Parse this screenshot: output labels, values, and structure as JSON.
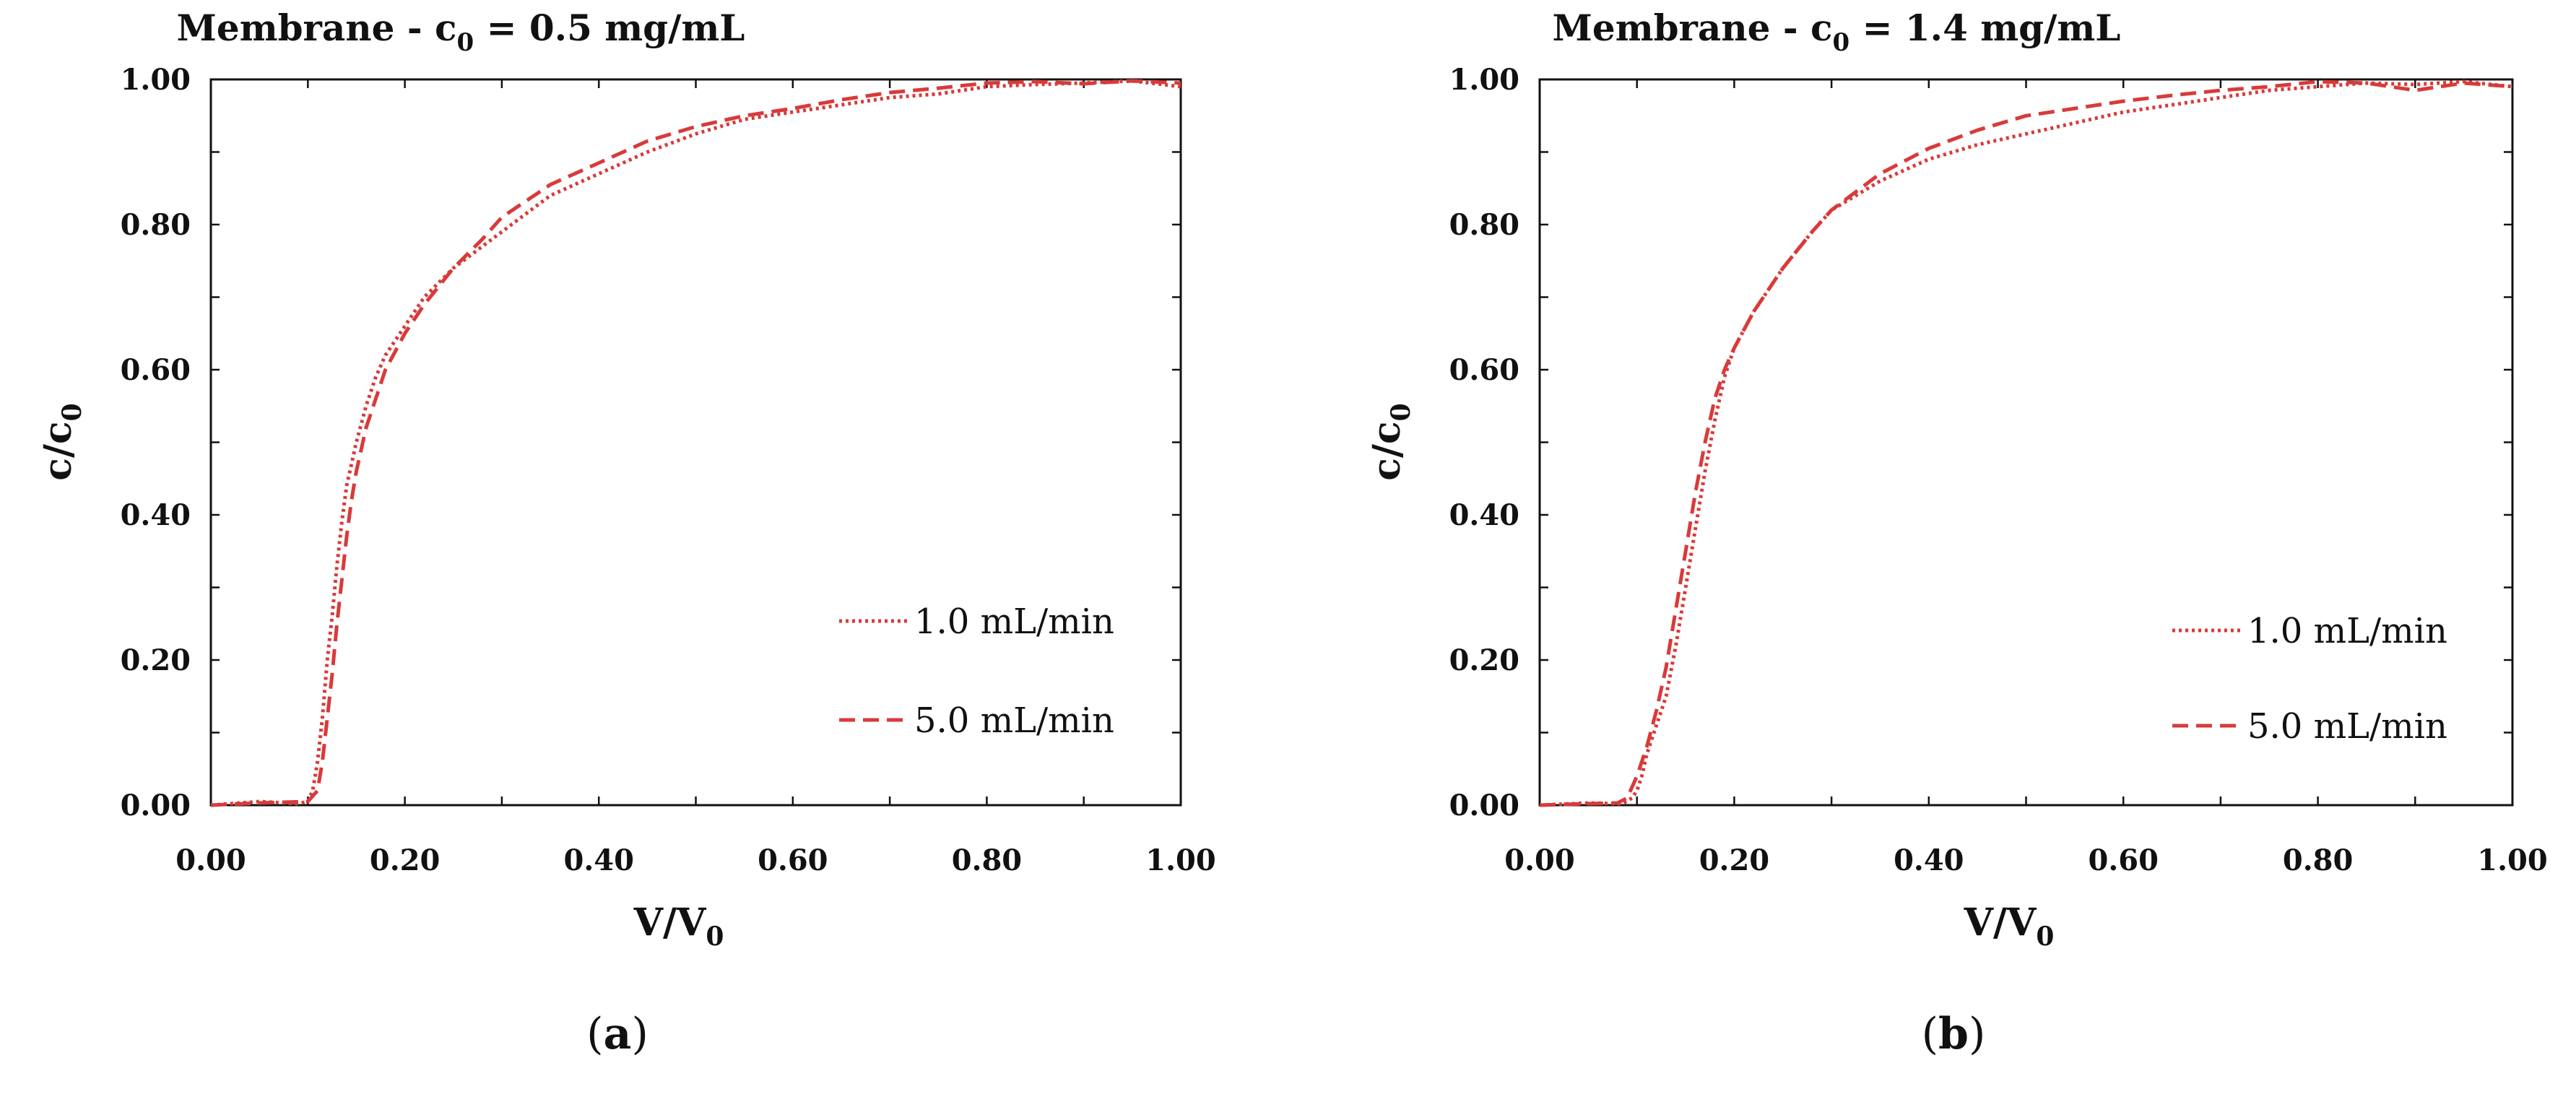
{
  "chart_data": [
    {
      "type": "line",
      "title": "Membrane - c",
      "title_sub": "0",
      "title_suffix": " = 0.5 mg/mL",
      "xlabel": "V/V",
      "xlabel_sub": "0",
      "ylabel": "c/c",
      "ylabel_sub": "0",
      "xlim": [
        0,
        1
      ],
      "ylim": [
        0,
        1
      ],
      "xticks": [
        "0.00",
        "0.20",
        "0.40",
        "0.60",
        "0.80",
        "1.00"
      ],
      "yticks": [
        "0.00",
        "0.20",
        "0.40",
        "0.60",
        "0.80",
        "1.00"
      ],
      "panel_label_open": "(",
      "panel_label": "a",
      "panel_label_close": ")",
      "series": [
        {
          "name": "1.0 mL/min",
          "style": "dotted",
          "color": "#d93a3a",
          "x": [
            0,
            0.05,
            0.09,
            0.1,
            0.105,
            0.11,
            0.115,
            0.12,
            0.125,
            0.13,
            0.135,
            0.14,
            0.15,
            0.16,
            0.17,
            0.18,
            0.2,
            0.22,
            0.25,
            0.28,
            0.3,
            0.35,
            0.4,
            0.45,
            0.5,
            0.55,
            0.6,
            0.65,
            0.7,
            0.75,
            0.8,
            0.85,
            0.9,
            0.95,
            1.0
          ],
          "y": [
            0,
            0.005,
            0.002,
            0.005,
            0.02,
            0.06,
            0.12,
            0.2,
            0.26,
            0.33,
            0.39,
            0.44,
            0.5,
            0.55,
            0.59,
            0.62,
            0.66,
            0.7,
            0.74,
            0.77,
            0.79,
            0.84,
            0.87,
            0.9,
            0.925,
            0.945,
            0.955,
            0.965,
            0.975,
            0.98,
            0.99,
            0.993,
            0.995,
            0.998,
            0.99
          ]
        },
        {
          "name": "5.0 mL/min",
          "style": "dashed",
          "color": "#d93a3a",
          "x": [
            0,
            0.05,
            0.1,
            0.11,
            0.115,
            0.12,
            0.125,
            0.13,
            0.135,
            0.14,
            0.145,
            0.15,
            0.16,
            0.17,
            0.18,
            0.2,
            0.22,
            0.25,
            0.28,
            0.3,
            0.35,
            0.4,
            0.45,
            0.5,
            0.55,
            0.6,
            0.65,
            0.7,
            0.75,
            0.8,
            0.85,
            0.9,
            0.95,
            1.0
          ],
          "y": [
            0,
            0.003,
            0.005,
            0.02,
            0.06,
            0.12,
            0.18,
            0.25,
            0.31,
            0.37,
            0.42,
            0.46,
            0.52,
            0.56,
            0.6,
            0.65,
            0.69,
            0.74,
            0.78,
            0.81,
            0.855,
            0.885,
            0.915,
            0.935,
            0.95,
            0.96,
            0.972,
            0.982,
            0.988,
            0.995,
            0.997,
            0.994,
            0.998,
            0.995
          ]
        }
      ]
    },
    {
      "type": "line",
      "title": "Membrane - c",
      "title_sub": "0",
      "title_suffix": " = 1.4 mg/mL",
      "xlabel": "V/V",
      "xlabel_sub": "0",
      "ylabel": "c/c",
      "ylabel_sub": "0",
      "xlim": [
        0,
        1
      ],
      "ylim": [
        0,
        1
      ],
      "xticks": [
        "0.00",
        "0.20",
        "0.40",
        "0.60",
        "0.80",
        "1.00"
      ],
      "yticks": [
        "0.00",
        "0.20",
        "0.40",
        "0.60",
        "0.80",
        "1.00"
      ],
      "panel_label_open": "(",
      "panel_label": "b",
      "panel_label_close": ")",
      "series": [
        {
          "name": "1.0 mL/min",
          "style": "dotted",
          "color": "#d93a3a",
          "x": [
            0,
            0.05,
            0.085,
            0.095,
            0.1,
            0.105,
            0.11,
            0.12,
            0.13,
            0.14,
            0.15,
            0.16,
            0.17,
            0.18,
            0.19,
            0.2,
            0.22,
            0.25,
            0.28,
            0.3,
            0.35,
            0.4,
            0.45,
            0.5,
            0.55,
            0.6,
            0.65,
            0.7,
            0.75,
            0.8,
            0.85,
            0.9,
            0.95,
            1.0
          ],
          "y": [
            0,
            0.003,
            0.002,
            0.01,
            0.02,
            0.04,
            0.07,
            0.11,
            0.15,
            0.22,
            0.3,
            0.38,
            0.46,
            0.53,
            0.59,
            0.63,
            0.68,
            0.74,
            0.79,
            0.82,
            0.86,
            0.89,
            0.91,
            0.925,
            0.94,
            0.955,
            0.965,
            0.975,
            0.985,
            0.99,
            0.995,
            0.993,
            0.997,
            0.99
          ]
        },
        {
          "name": "5.0 mL/min",
          "style": "dashed",
          "color": "#d93a3a",
          "x": [
            0,
            0.05,
            0.08,
            0.09,
            0.1,
            0.11,
            0.12,
            0.13,
            0.14,
            0.15,
            0.16,
            0.17,
            0.18,
            0.19,
            0.2,
            0.22,
            0.25,
            0.28,
            0.3,
            0.35,
            0.4,
            0.45,
            0.5,
            0.55,
            0.6,
            0.65,
            0.7,
            0.75,
            0.8,
            0.85,
            0.9,
            0.95,
            1.0
          ],
          "y": [
            0,
            0.002,
            0.003,
            0.01,
            0.04,
            0.08,
            0.13,
            0.19,
            0.27,
            0.35,
            0.43,
            0.5,
            0.56,
            0.6,
            0.63,
            0.68,
            0.74,
            0.79,
            0.82,
            0.87,
            0.905,
            0.93,
            0.95,
            0.96,
            0.97,
            0.978,
            0.985,
            0.99,
            0.997,
            0.995,
            0.985,
            0.995,
            0.99
          ]
        }
      ]
    }
  ]
}
